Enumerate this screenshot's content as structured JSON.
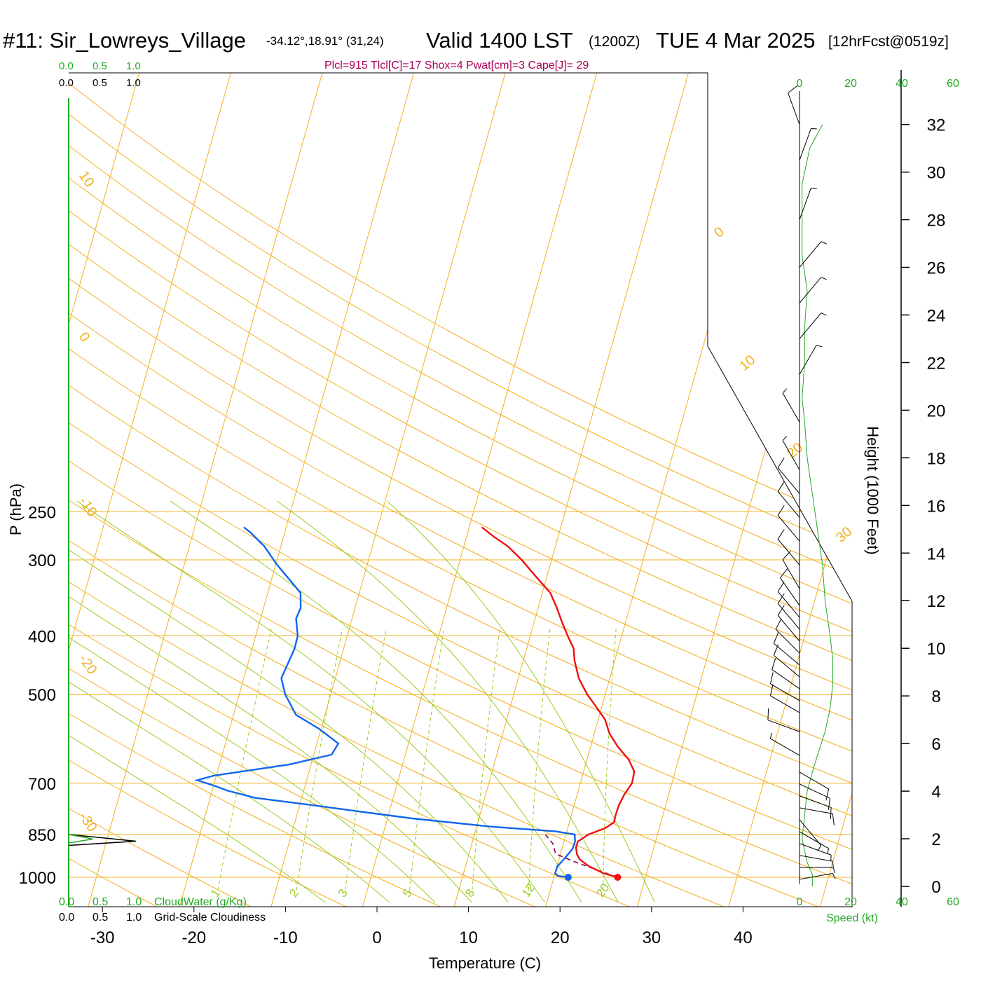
{
  "title": {
    "station": "#11: Sir_Lowreys_Village",
    "coords": "-34.12°,18.91° (31,24)",
    "valid": "Valid 1400 LST",
    "zulu": "(1200Z)",
    "date": "TUE 4 Mar 2025",
    "forecast": "[12hrFcst@0519z]"
  },
  "indices": "Plcl=915 Tlcl[C]=17 Shox=4 Pwat[cm]=3 Cape[J]= 29",
  "colors": {
    "temperature": "#ee1111",
    "dewpoint": "#1166ee",
    "isotherm": "#f0b020",
    "dry_adiabat": "#f0b020",
    "moist_adiabat": "#99cc22",
    "mixing_ratio": "#99cc22",
    "parcel": "#880044",
    "cloud_water": "#22aa22",
    "wind_speed": "#22aa22",
    "indices_text": "#aa0055"
  },
  "icon_names": [
    "wind-barb-icon"
  ],
  "chart_data": {
    "type": "line",
    "chart_kind": "skew-T log-P sounding",
    "xlabel": "Temperature (C)",
    "ylabel": "P (hPa)",
    "right_ylabel": "Height (1000 Feet)",
    "x_ticks": [
      "-30",
      "-20",
      "-10",
      "0",
      "10",
      "20",
      "30",
      "40"
    ],
    "x_tick_values": [
      -30,
      -20,
      -10,
      0,
      10,
      20,
      30,
      40
    ],
    "pressure_ticks": [
      "250",
      "300",
      "400",
      "500",
      "700",
      "850",
      "1000"
    ],
    "pressure_tick_values": [
      250,
      300,
      400,
      500,
      700,
      850,
      1000
    ],
    "height_ticks": [
      "0",
      "2",
      "4",
      "6",
      "8",
      "10",
      "12",
      "14",
      "16",
      "18",
      "20",
      "22",
      "24",
      "26",
      "28",
      "30",
      "32"
    ],
    "height_tick_values": [
      0,
      2,
      4,
      6,
      8,
      10,
      12,
      14,
      16,
      18,
      20,
      22,
      24,
      26,
      28,
      30,
      32
    ],
    "isotherm_labels": [
      "10",
      "0",
      "-10",
      "-20",
      "-30",
      "0",
      "10",
      "20",
      "30"
    ],
    "mixing_ratio_labels": [
      "1",
      "2",
      "3",
      "5",
      "8",
      "12",
      "20"
    ],
    "mixing_ratio_values": [
      1,
      2,
      3,
      5,
      8,
      12,
      20
    ],
    "temperature_profile": {
      "name": "Temperature",
      "points": [
        [
          1000,
          26.3
        ],
        [
          985,
          24.5
        ],
        [
          960,
          22.5
        ],
        [
          935,
          21.0
        ],
        [
          915,
          20.3
        ],
        [
          893,
          19.8
        ],
        [
          873,
          19.6
        ],
        [
          850,
          20.3
        ],
        [
          830,
          21.7
        ],
        [
          812,
          22.3
        ],
        [
          790,
          22.0
        ],
        [
          760,
          21.7
        ],
        [
          730,
          21.6
        ],
        [
          700,
          21.7
        ],
        [
          670,
          21.2
        ],
        [
          640,
          19.8
        ],
        [
          610,
          17.8
        ],
        [
          580,
          16.0
        ],
        [
          550,
          14.6
        ],
        [
          520,
          12.5
        ],
        [
          500,
          11.0
        ],
        [
          470,
          9.0
        ],
        [
          440,
          7.4
        ],
        [
          420,
          6.5
        ],
        [
          400,
          5.0
        ],
        [
          380,
          3.5
        ],
        [
          360,
          2.0
        ],
        [
          340,
          0.3
        ],
        [
          320,
          -2.3
        ],
        [
          300,
          -5.0
        ],
        [
          285,
          -7.4
        ],
        [
          275,
          -9.5
        ],
        [
          265,
          -11.5
        ]
      ]
    },
    "dewpoint_profile": {
      "name": "Dewpoint",
      "points": [
        [
          1000,
          20.9
        ],
        [
          995,
          19.7
        ],
        [
          985,
          19.2
        ],
        [
          960,
          19.0
        ],
        [
          925,
          19.3
        ],
        [
          898,
          19.5
        ],
        [
          873,
          19.3
        ],
        [
          850,
          18.8
        ],
        [
          840,
          16.5
        ],
        [
          825,
          9.0
        ],
        [
          800,
          0.0
        ],
        [
          780,
          -6.0
        ],
        [
          760,
          -12.0
        ],
        [
          740,
          -18.5
        ],
        [
          720,
          -22.0
        ],
        [
          705,
          -24.0
        ],
        [
          692,
          -26.0
        ],
        [
          680,
          -24.5
        ],
        [
          652,
          -17.0
        ],
        [
          628,
          -13.0
        ],
        [
          602,
          -13.0
        ],
        [
          570,
          -16.0
        ],
        [
          540,
          -19.5
        ],
        [
          500,
          -22.0
        ],
        [
          470,
          -23.5
        ],
        [
          420,
          -24.0
        ],
        [
          400,
          -24.5
        ],
        [
          375,
          -25.8
        ],
        [
          360,
          -26.0
        ],
        [
          340,
          -27.0
        ],
        [
          320,
          -29.5
        ],
        [
          305,
          -31.5
        ],
        [
          285,
          -34.0
        ],
        [
          270,
          -36.5
        ],
        [
          265,
          -37.5
        ]
      ]
    },
    "parcel_profile": {
      "name": "Parcel",
      "points": [
        [
          1000,
          26.3
        ],
        [
          980,
          24.3
        ],
        [
          960,
          22.3
        ],
        [
          940,
          20.3
        ],
        [
          915,
          18.0
        ],
        [
          880,
          17.0
        ],
        [
          850,
          15.6
        ]
      ]
    },
    "surface_markers": [
      {
        "name": "surface-temperature",
        "pressure": 1000,
        "value": 26.3
      },
      {
        "name": "surface-dewpoint",
        "pressure": 1000,
        "value": 20.9
      }
    ],
    "cloud_water_axis": {
      "label": "CloudWater (g/Kg)",
      "ticks": [
        "0.0",
        "0.5",
        "1.0"
      ],
      "profile": [
        [
          850,
          0.0
        ],
        [
          865,
          0.15
        ],
        [
          878,
          0.0
        ]
      ]
    },
    "cloudiness_axis": {
      "label": "Grid-Scale Cloudiness",
      "ticks": [
        "0.0",
        "0.5",
        "1.0"
      ],
      "profile": [
        [
          850,
          0.0
        ],
        [
          872,
          1.0
        ],
        [
          886,
          0.0
        ]
      ]
    },
    "wind_profile": {
      "speed_label": "Speed (kt)",
      "speed_ticks": [
        "0",
        "20",
        "40",
        "60"
      ],
      "speed_tick_values": [
        0,
        20,
        40,
        60
      ],
      "speed_vs_height": [
        [
          0.0,
          5
        ],
        [
          0.5,
          5
        ],
        [
          1.0,
          3
        ],
        [
          1.5,
          2
        ],
        [
          2.0,
          1
        ],
        [
          3.0,
          2
        ],
        [
          4.0,
          3
        ],
        [
          4.8,
          5
        ],
        [
          5.5,
          7
        ],
        [
          6.5,
          10
        ],
        [
          7.5,
          12
        ],
        [
          8.5,
          13
        ],
        [
          9.5,
          13
        ],
        [
          10.5,
          12
        ],
        [
          12.0,
          10
        ],
        [
          13.5,
          9
        ],
        [
          15.0,
          7
        ],
        [
          16.5,
          5
        ],
        [
          18.0,
          3
        ],
        [
          19.5,
          2
        ],
        [
          20.5,
          1
        ],
        [
          22.0,
          2
        ],
        [
          23.5,
          2
        ],
        [
          25.0,
          3
        ],
        [
          26.5,
          1
        ],
        [
          28.0,
          1
        ],
        [
          29.5,
          1
        ],
        [
          31.0,
          4
        ],
        [
          32.0,
          9
        ]
      ],
      "barbs_height_kft": [
        0.3,
        0.8,
        1.3,
        1.8,
        2.3,
        2.8,
        3.3,
        3.8,
        4.3,
        4.8,
        5.5,
        6.5,
        7.3,
        7.8,
        8.3,
        8.8,
        9.3,
        9.8,
        10.3,
        10.8,
        11.3,
        11.8,
        12.5,
        13.5,
        14.5,
        15.5,
        16.5,
        17.5,
        19.5,
        21.5,
        23.0,
        24.5,
        26.0,
        28.0,
        30.5,
        32.0
      ],
      "barbs_speed_kt": [
        5,
        5,
        5,
        5,
        5,
        5,
        10,
        10,
        10,
        10,
        5,
        10,
        10,
        10,
        10,
        10,
        10,
        10,
        10,
        10,
        10,
        10,
        10,
        10,
        10,
        10,
        10,
        5,
        5,
        5,
        5,
        5,
        5,
        5,
        5,
        10
      ],
      "barbs_from_deg": [
        80,
        90,
        100,
        110,
        120,
        140,
        100,
        110,
        115,
        120,
        300,
        290,
        300,
        300,
        305,
        310,
        310,
        315,
        320,
        320,
        320,
        325,
        330,
        320,
        320,
        320,
        320,
        330,
        330,
        30,
        40,
        40,
        40,
        20,
        20,
        340
      ]
    }
  }
}
